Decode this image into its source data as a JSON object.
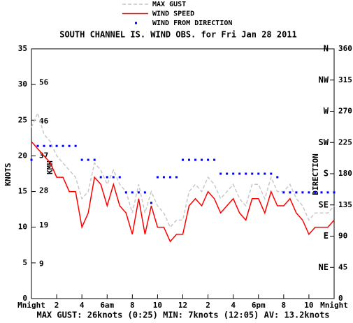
{
  "chart_data": {
    "type": "line",
    "title": "SOUTH CHANNEL IS. WIND OBS. for Fri Jan 28 2011",
    "footer": "MAX GUST: 26knots (0:25) MIN: 7knots (12:05) AV: 13.2knots",
    "ylabel": "KNOTS",
    "y2label": "DIRECTION",
    "y3label": "KMH",
    "x": [
      0,
      0.5,
      1,
      1.5,
      2,
      2.5,
      3,
      3.5,
      4,
      4.5,
      5,
      5.5,
      6,
      6.5,
      7,
      7.5,
      8,
      8.5,
      9,
      9.5,
      10,
      10.5,
      11,
      11.5,
      12,
      12.5,
      13,
      13.5,
      14,
      14.5,
      15,
      15.5,
      16,
      16.5,
      17,
      17.5,
      18,
      18.5,
      19,
      19.5,
      20,
      20.5,
      21,
      21.5,
      22,
      22.5,
      23,
      23.5,
      24
    ],
    "xlim": [
      0,
      24
    ],
    "xticks": [
      {
        "value": 0,
        "label": "Mnight"
      },
      2,
      4,
      {
        "value": 6,
        "label": "6am"
      },
      8,
      10,
      12,
      {
        "value": 14,
        "label": "2"
      },
      {
        "value": 16,
        "label": "4"
      },
      {
        "value": 18,
        "label": "6pm"
      },
      {
        "value": 20,
        "label": "8"
      },
      {
        "value": 22,
        "label": "10"
      },
      {
        "value": 24,
        "label": "Mnight"
      }
    ],
    "ylim": [
      0,
      35
    ],
    "yticks": [
      0,
      5,
      10,
      15,
      20,
      25,
      30,
      35
    ],
    "y3lim": [
      0,
      64.82
    ],
    "y3ticks": [
      9,
      19,
      28,
      37,
      46,
      56
    ],
    "y2lim": [
      0,
      360
    ],
    "y2ticks": [
      0,
      45,
      90,
      135,
      180,
      225,
      270,
      315,
      360
    ],
    "compass_ticks": [
      {
        "value": 45,
        "label": "NE"
      },
      {
        "value": 90,
        "label": "E"
      },
      {
        "value": 135,
        "label": "SE"
      },
      {
        "value": 180,
        "label": "S"
      },
      {
        "value": 225,
        "label": "SW"
      },
      {
        "value": 270,
        "label": "W"
      },
      {
        "value": 315,
        "label": "NW"
      },
      {
        "value": 360,
        "label": "N"
      }
    ],
    "series": [
      {
        "name": "MAX GUST",
        "color": "#c8c8c8",
        "dashed": true,
        "values": [
          24,
          26,
          23,
          22,
          20,
          19,
          18,
          17,
          14,
          15,
          19,
          18,
          16,
          18,
          16,
          15,
          12,
          16,
          12,
          15,
          13,
          12,
          10,
          11,
          11,
          15,
          16,
          15,
          17,
          16,
          14,
          15,
          16,
          14,
          13,
          16,
          16,
          14,
          17,
          15,
          15,
          16,
          14,
          13,
          11,
          12,
          12,
          12,
          13
        ]
      },
      {
        "name": "WIND SPEED",
        "color": "#ff0000",
        "values": [
          22,
          21,
          20,
          19,
          17,
          17,
          15,
          15,
          10,
          12,
          17,
          16,
          13,
          16,
          13,
          12,
          9,
          14,
          9,
          13,
          10,
          10,
          8,
          9,
          9,
          13,
          14,
          13,
          15,
          14,
          12,
          13,
          14,
          12,
          11,
          14,
          14,
          12,
          15,
          13,
          13,
          14,
          12,
          11,
          9,
          10,
          10,
          10,
          11
        ]
      },
      {
        "name": "WIND FROM DIRECTION",
        "color": "#0000ff",
        "axis": "y2",
        "dots": true,
        "values": [
          200,
          220,
          220,
          220,
          220,
          220,
          220,
          220,
          200,
          200,
          200,
          175,
          175,
          175,
          175,
          153,
          153,
          153,
          153,
          138,
          175,
          175,
          175,
          175,
          200,
          200,
          200,
          200,
          200,
          200,
          180,
          180,
          180,
          180,
          180,
          180,
          180,
          180,
          180,
          175,
          153,
          153,
          153,
          153,
          153,
          153,
          153,
          153,
          153
        ]
      }
    ]
  }
}
